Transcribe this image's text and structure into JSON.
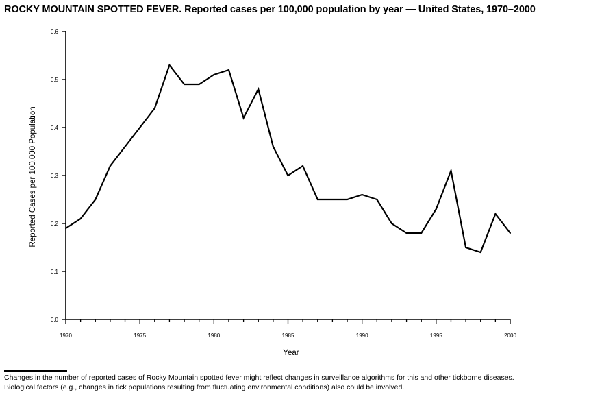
{
  "chart_data": {
    "type": "line",
    "title": "ROCKY MOUNTAIN SPOTTED FEVER. Reported cases per 100,000 population by year — United States, 1970–2000",
    "xlabel": "Year",
    "ylabel": "Reported Cases per 100,000 Population",
    "xlim": [
      1970,
      2000
    ],
    "ylim": [
      0,
      0.6
    ],
    "x_ticks": [
      1970,
      1975,
      1980,
      1985,
      1990,
      1995,
      2000
    ],
    "y_ticks": [
      "0.0",
      "0.1",
      "0.2",
      "0.3",
      "0.4",
      "0.5",
      "0.6"
    ],
    "grid": false,
    "legend": "none",
    "line_color": "#000000",
    "series": [
      {
        "x": [
          1970,
          1971,
          1972,
          1973,
          1974,
          1975,
          1976,
          1977,
          1978,
          1979,
          1980,
          1981,
          1982,
          1983,
          1984,
          1985,
          1986,
          1987,
          1988,
          1989,
          1990,
          1991,
          1992,
          1993,
          1994,
          1995,
          1996,
          1997,
          1998,
          1999,
          2000
        ],
        "values": [
          0.19,
          0.21,
          0.25,
          0.32,
          0.36,
          0.4,
          0.44,
          0.53,
          0.49,
          0.49,
          0.51,
          0.52,
          0.42,
          0.48,
          0.36,
          0.3,
          0.32,
          0.25,
          0.25,
          0.25,
          0.26,
          0.25,
          0.2,
          0.18,
          0.18,
          0.23,
          0.31,
          0.15,
          0.14,
          0.22,
          0.18
        ]
      }
    ]
  },
  "footnote": {
    "line1": "Changes in the number of reported cases of Rocky Mountain spotted fever might reflect changes in surveillance algorithms for this and other tickborne diseases.",
    "line2": "Biological factors (e.g., changes in tick populations resulting from fluctuating environmental conditions) also could be involved."
  }
}
